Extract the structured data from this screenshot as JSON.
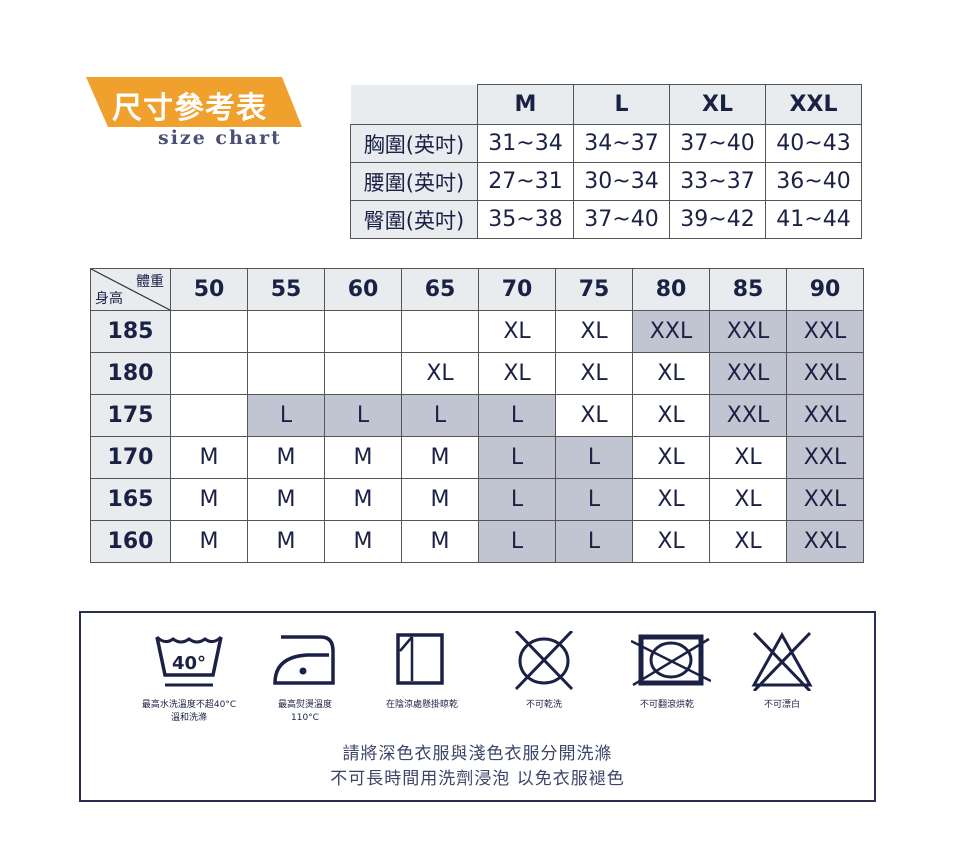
{
  "title": "尺寸參考表",
  "subtitle": "size chart",
  "measure_table": {
    "sizes": [
      "M",
      "L",
      "XL",
      "XXL"
    ],
    "rows": [
      {
        "label": "胸圍(英吋)",
        "values": [
          "31~34",
          "34~37",
          "37~40",
          "40~43"
        ]
      },
      {
        "label": "腰圍(英吋)",
        "values": [
          "27~31",
          "30~34",
          "33~37",
          "36~40"
        ]
      },
      {
        "label": "臀圍(英吋)",
        "values": [
          "35~38",
          "37~40",
          "39~42",
          "41~44"
        ]
      }
    ]
  },
  "fit_table": {
    "weight_label": "體重",
    "height_label": "身高",
    "weights": [
      "50",
      "55",
      "60",
      "65",
      "70",
      "75",
      "80",
      "85",
      "90"
    ],
    "rows": [
      {
        "height": "185",
        "cells": [
          "",
          "",
          "",
          "",
          "XL",
          "XL",
          "XXL",
          "XXL",
          "XXL"
        ],
        "shaded": [
          0,
          0,
          0,
          0,
          0,
          0,
          1,
          1,
          1
        ]
      },
      {
        "height": "180",
        "cells": [
          "",
          "",
          "",
          "XL",
          "XL",
          "XL",
          "XL",
          "XXL",
          "XXL"
        ],
        "shaded": [
          0,
          0,
          0,
          0,
          0,
          0,
          0,
          1,
          1
        ]
      },
      {
        "height": "175",
        "cells": [
          "",
          "L",
          "L",
          "L",
          "L",
          "XL",
          "XL",
          "XXL",
          "XXL"
        ],
        "shaded": [
          0,
          1,
          1,
          1,
          1,
          0,
          0,
          1,
          1
        ]
      },
      {
        "height": "170",
        "cells": [
          "M",
          "M",
          "M",
          "M",
          "L",
          "L",
          "XL",
          "XL",
          "XXL"
        ],
        "shaded": [
          0,
          0,
          0,
          0,
          1,
          1,
          0,
          0,
          1
        ]
      },
      {
        "height": "165",
        "cells": [
          "M",
          "M",
          "M",
          "M",
          "L",
          "L",
          "XL",
          "XL",
          "XXL"
        ],
        "shaded": [
          0,
          0,
          0,
          0,
          1,
          1,
          0,
          0,
          1
        ]
      },
      {
        "height": "160",
        "cells": [
          "M",
          "M",
          "M",
          "M",
          "L",
          "L",
          "XL",
          "XL",
          "XXL"
        ],
        "shaded": [
          0,
          0,
          0,
          0,
          1,
          1,
          0,
          0,
          1
        ]
      }
    ]
  },
  "care": {
    "wash_temp": "40°",
    "items": [
      {
        "icon": "wash-40-gentle-icon",
        "line1": "最高水洗溫度不超40°C",
        "line2": "溫和洗滌"
      },
      {
        "icon": "iron-low-icon",
        "line1": "最高熨燙溫度",
        "line2": "110°C"
      },
      {
        "icon": "line-dry-shade-icon",
        "line1": "在陰涼處懸掛晾乾",
        "line2": ""
      },
      {
        "icon": "no-dry-clean-icon",
        "line1": "不可乾洗",
        "line2": ""
      },
      {
        "icon": "no-tumble-dry-icon",
        "line1": "不可翻滾烘乾",
        "line2": ""
      },
      {
        "icon": "no-bleach-icon",
        "line1": "不可漂白",
        "line2": ""
      }
    ],
    "note1": "請將深色衣服與淺色衣服分開洗滌",
    "note2": "不可長時間用洗劑浸泡  以免衣服褪色"
  },
  "colors": {
    "accent": "#f0a02c",
    "ink": "#1b2145",
    "header_bg": "#e8ecef",
    "shade": "#c1c5d1"
  }
}
